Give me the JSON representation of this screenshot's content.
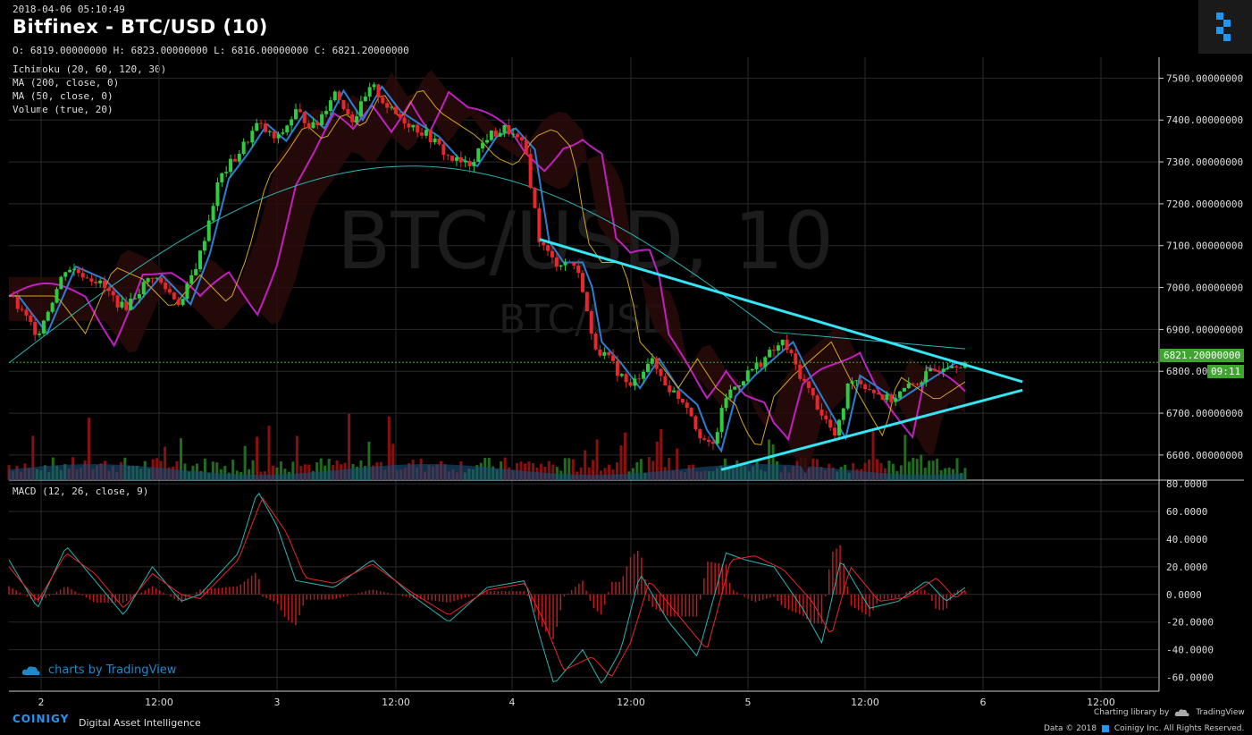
{
  "header": {
    "timestamp": "2018-04-06 05:10:49",
    "title": "Bitfinex - BTC/USD (10)",
    "ohlc": "O: 6819.00000000 H: 6823.00000000 L: 6816.00000000 C: 6821.20000000"
  },
  "indicators": [
    "Ichimoku (20, 60, 120, 30)",
    "MA (200, close, 0)",
    "MA (50, close, 0)",
    "Volume (true, 20)"
  ],
  "watermark": {
    "main": "BTC/USD, 10",
    "sub": "BTC/USD"
  },
  "current": {
    "price_label": "6821.20000000",
    "countdown": "09:11",
    "color": "#3ea52e"
  },
  "macd_label": "MACD (12, 26, close, 9)",
  "tradingview": {
    "text": "charts by TradingView",
    "color": "#1e88c9"
  },
  "footer": {
    "brand": "COINIGY",
    "tagline": "Digital Asset Intelligence",
    "charting": "Charting library by",
    "tv_name": "TradingView",
    "data": "Data © 2018",
    "coinigy": "Coinigy Inc. All Rights Reserved."
  },
  "colors": {
    "background": "#000000",
    "up": "#2ecc40",
    "down": "#e8262b",
    "grid": "#2a2a2a",
    "trendline": "#33e5f5",
    "ichimoku_line": "#c020c0",
    "tenkan": "#2a7fd4",
    "ma200": "#2ab5b5",
    "ma50": "#d4a520",
    "macd_line": "#2ab5b5",
    "signal_line": "#e8262b"
  },
  "chart_data": [
    {
      "type": "candlestick",
      "title": "Bitfinex - BTC/USD (10)",
      "x_ticks": [
        "2",
        "12:00",
        "3",
        "12:00",
        "4",
        "12:00",
        "5",
        "12:00",
        "6",
        "12:00"
      ],
      "y_ticks": [
        "7500.00000000",
        "7400.00000000",
        "7300.00000000",
        "7200.00000000",
        "7100.00000000",
        "7000.00000000",
        "6900.00000000",
        "6800.00000000",
        "6700.00000000",
        "6600.00000000"
      ],
      "ylim": [
        6540,
        7550
      ],
      "last_close": 6821.2,
      "close_path": [
        [
          0,
          6980
        ],
        [
          0.03,
          6890
        ],
        [
          0.06,
          7050
        ],
        [
          0.09,
          7020
        ],
        [
          0.12,
          6950
        ],
        [
          0.15,
          7030
        ],
        [
          0.18,
          6960
        ],
        [
          0.2,
          7080
        ],
        [
          0.22,
          7260
        ],
        [
          0.24,
          7320
        ],
        [
          0.26,
          7390
        ],
        [
          0.28,
          7350
        ],
        [
          0.3,
          7420
        ],
        [
          0.32,
          7380
        ],
        [
          0.34,
          7470
        ],
        [
          0.36,
          7400
        ],
        [
          0.38,
          7480
        ],
        [
          0.4,
          7420
        ],
        [
          0.42,
          7390
        ],
        [
          0.44,
          7360
        ],
        [
          0.46,
          7310
        ],
        [
          0.48,
          7290
        ],
        [
          0.5,
          7360
        ],
        [
          0.52,
          7380
        ],
        [
          0.54,
          7330
        ],
        [
          0.555,
          7110
        ],
        [
          0.57,
          7060
        ],
        [
          0.59,
          7060
        ],
        [
          0.6,
          7000
        ],
        [
          0.61,
          6870
        ],
        [
          0.63,
          6820
        ],
        [
          0.65,
          6760
        ],
        [
          0.67,
          6830
        ],
        [
          0.69,
          6760
        ],
        [
          0.71,
          6720
        ],
        [
          0.72,
          6660
        ],
        [
          0.735,
          6610
        ],
        [
          0.75,
          6740
        ],
        [
          0.77,
          6790
        ],
        [
          0.79,
          6830
        ],
        [
          0.81,
          6870
        ],
        [
          0.83,
          6780
        ],
        [
          0.85,
          6700
        ],
        [
          0.865,
          6640
        ],
        [
          0.88,
          6790
        ],
        [
          0.9,
          6760
        ],
        [
          0.92,
          6730
        ],
        [
          0.94,
          6760
        ],
        [
          0.96,
          6790
        ],
        [
          0.98,
          6820
        ],
        [
          1.0,
          6821
        ]
      ],
      "trendlines": [
        {
          "from": [
            0.555,
            7115
          ],
          "to": [
            1.06,
            6775
          ]
        },
        {
          "from": [
            0.745,
            6565
          ],
          "to": [
            1.06,
            6755
          ]
        }
      ]
    },
    {
      "type": "line",
      "title": "MACD (12, 26, close, 9)",
      "y_ticks": [
        "80.0000",
        "60.0000",
        "40.0000",
        "20.0000",
        "0.0000",
        "-20.0000",
        "-40.0000",
        "-60.0000"
      ],
      "ylim": [
        -70,
        82
      ],
      "macd": [
        [
          0,
          25
        ],
        [
          0.03,
          -10
        ],
        [
          0.06,
          35
        ],
        [
          0.09,
          10
        ],
        [
          0.12,
          -15
        ],
        [
          0.15,
          20
        ],
        [
          0.18,
          -5
        ],
        [
          0.2,
          0
        ],
        [
          0.24,
          30
        ],
        [
          0.26,
          75
        ],
        [
          0.28,
          50
        ],
        [
          0.3,
          10
        ],
        [
          0.34,
          5
        ],
        [
          0.38,
          25
        ],
        [
          0.42,
          0
        ],
        [
          0.46,
          -20
        ],
        [
          0.5,
          5
        ],
        [
          0.54,
          10
        ],
        [
          0.555,
          -30
        ],
        [
          0.57,
          -65
        ],
        [
          0.6,
          -40
        ],
        [
          0.62,
          -65
        ],
        [
          0.64,
          -40
        ],
        [
          0.66,
          15
        ],
        [
          0.69,
          -20
        ],
        [
          0.72,
          -45
        ],
        [
          0.75,
          30
        ],
        [
          0.77,
          25
        ],
        [
          0.8,
          20
        ],
        [
          0.83,
          -10
        ],
        [
          0.85,
          -35
        ],
        [
          0.87,
          25
        ],
        [
          0.9,
          -10
        ],
        [
          0.93,
          -5
        ],
        [
          0.96,
          10
        ],
        [
          0.98,
          -5
        ],
        [
          1.0,
          5
        ]
      ],
      "signal": [
        [
          0,
          20
        ],
        [
          0.03,
          -5
        ],
        [
          0.06,
          30
        ],
        [
          0.09,
          15
        ],
        [
          0.12,
          -10
        ],
        [
          0.15,
          15
        ],
        [
          0.18,
          0
        ],
        [
          0.2,
          -3
        ],
        [
          0.24,
          25
        ],
        [
          0.265,
          70
        ],
        [
          0.29,
          45
        ],
        [
          0.31,
          12
        ],
        [
          0.34,
          8
        ],
        [
          0.38,
          22
        ],
        [
          0.42,
          2
        ],
        [
          0.46,
          -15
        ],
        [
          0.5,
          3
        ],
        [
          0.54,
          8
        ],
        [
          0.56,
          -20
        ],
        [
          0.58,
          -55
        ],
        [
          0.61,
          -45
        ],
        [
          0.63,
          -60
        ],
        [
          0.65,
          -35
        ],
        [
          0.67,
          10
        ],
        [
          0.7,
          -15
        ],
        [
          0.73,
          -40
        ],
        [
          0.755,
          25
        ],
        [
          0.78,
          28
        ],
        [
          0.81,
          18
        ],
        [
          0.84,
          -5
        ],
        [
          0.86,
          -30
        ],
        [
          0.88,
          20
        ],
        [
          0.91,
          -5
        ],
        [
          0.94,
          -2
        ],
        [
          0.97,
          12
        ],
        [
          0.99,
          -3
        ],
        [
          1.0,
          3
        ]
      ]
    }
  ]
}
